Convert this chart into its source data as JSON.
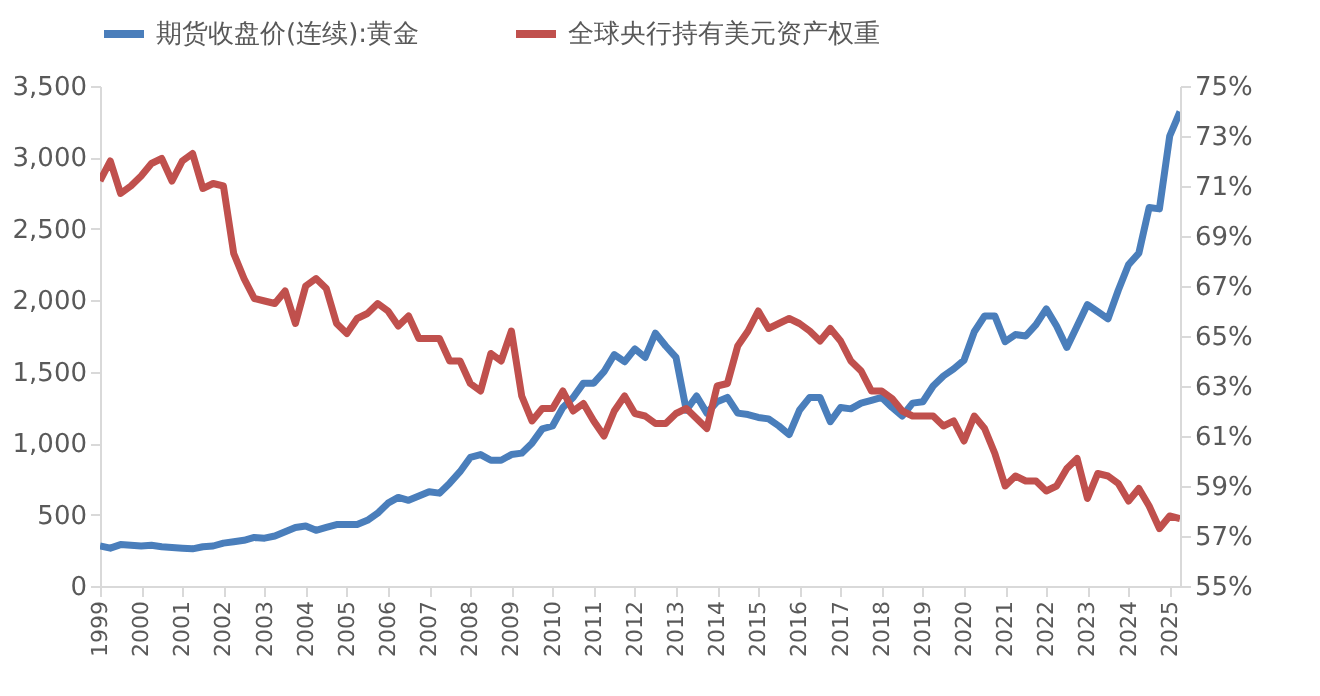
{
  "chart_data": {
    "type": "line",
    "x": [
      1999,
      1999.25,
      1999.5,
      1999.75,
      2000,
      2000.25,
      2000.5,
      2000.75,
      2001,
      2001.25,
      2001.5,
      2001.75,
      2002,
      2002.25,
      2002.5,
      2002.75,
      2003,
      2003.25,
      2003.5,
      2003.75,
      2004,
      2004.25,
      2004.5,
      2004.75,
      2005,
      2005.25,
      2005.5,
      2005.75,
      2006,
      2006.25,
      2006.5,
      2006.75,
      2007,
      2007.25,
      2007.5,
      2007.75,
      2008,
      2008.25,
      2008.5,
      2008.75,
      2009,
      2009.25,
      2009.5,
      2009.75,
      2010,
      2010.25,
      2010.5,
      2010.75,
      2011,
      2011.25,
      2011.5,
      2011.75,
      2012,
      2012.25,
      2012.5,
      2012.75,
      2013,
      2013.25,
      2013.5,
      2013.75,
      2014,
      2014.25,
      2014.5,
      2014.75,
      2015,
      2015.25,
      2015.5,
      2015.75,
      2016,
      2016.25,
      2016.5,
      2016.75,
      2017,
      2017.25,
      2017.5,
      2017.75,
      2018,
      2018.25,
      2018.5,
      2018.75,
      2019,
      2019.25,
      2019.5,
      2019.75,
      2020,
      2020.25,
      2020.5,
      2020.75,
      2021,
      2021.25,
      2021.5,
      2021.75,
      2022,
      2022.25,
      2022.5,
      2022.75,
      2023,
      2023.25,
      2023.5,
      2023.75,
      2024,
      2024.25,
      2024.5,
      2024.75,
      2025,
      2025.25
    ],
    "series": [
      {
        "name": "期货收盘价(连续):黄金",
        "color": "#4a7ebb",
        "values": [
          280,
          265,
          290,
          285,
          280,
          285,
          275,
          270,
          265,
          260,
          275,
          280,
          300,
          310,
          320,
          340,
          335,
          350,
          380,
          410,
          420,
          390,
          410,
          430,
          430,
          430,
          460,
          510,
          580,
          620,
          600,
          630,
          660,
          650,
          720,
          800,
          900,
          920,
          880,
          880,
          920,
          930,
          1000,
          1100,
          1120,
          1250,
          1320,
          1420,
          1420,
          1500,
          1620,
          1570,
          1660,
          1600,
          1770,
          1680,
          1600,
          1230,
          1330,
          1210,
          1290,
          1320,
          1210,
          1200,
          1180,
          1170,
          1120,
          1060,
          1230,
          1320,
          1320,
          1150,
          1250,
          1240,
          1280,
          1300,
          1320,
          1250,
          1190,
          1280,
          1290,
          1400,
          1470,
          1520,
          1580,
          1780,
          1890,
          1890,
          1710,
          1760,
          1750,
          1830,
          1940,
          1820,
          1670,
          1820,
          1970,
          1920,
          1870,
          2070,
          2250,
          2330,
          2650,
          2640,
          3150,
          3320
        ]
      },
      {
        "name": "全球央行持有美元资产权重",
        "color": "#c0504d",
        "axis": "y2",
        "values": [
          71.2,
          72.0,
          70.7,
          71.0,
          71.4,
          71.9,
          72.1,
          71.2,
          72.0,
          72.3,
          70.9,
          71.1,
          71.0,
          68.3,
          67.3,
          66.5,
          66.4,
          66.3,
          66.8,
          65.5,
          67.0,
          67.3,
          66.9,
          65.5,
          65.1,
          65.7,
          65.9,
          66.3,
          66.0,
          65.4,
          65.8,
          64.9,
          64.9,
          64.9,
          64.0,
          64.0,
          63.1,
          62.8,
          64.3,
          64.0,
          65.2,
          62.6,
          61.6,
          62.1,
          62.1,
          62.8,
          62.0,
          62.3,
          61.6,
          61.0,
          62.0,
          62.6,
          61.9,
          61.8,
          61.5,
          61.5,
          61.9,
          62.1,
          61.7,
          61.3,
          63.0,
          63.1,
          64.6,
          65.2,
          66.0,
          65.3,
          65.5,
          65.7,
          65.5,
          65.2,
          64.8,
          65.3,
          64.8,
          64.0,
          63.6,
          62.8,
          62.8,
          62.5,
          62.0,
          61.8,
          61.8,
          61.8,
          61.4,
          61.6,
          60.8,
          61.8,
          61.3,
          60.3,
          59.0,
          59.4,
          59.2,
          59.2,
          58.8,
          59.0,
          59.7,
          60.1,
          58.5,
          59.5,
          59.4,
          59.1,
          58.4,
          58.9,
          58.2,
          57.3,
          57.8,
          57.7
        ]
      }
    ],
    "xlim": [
      1999,
      2025.25
    ],
    "xticks": [
      1999,
      2000,
      2001,
      2002,
      2003,
      2004,
      2005,
      2006,
      2007,
      2008,
      2009,
      2010,
      2011,
      2012,
      2013,
      2014,
      2015,
      2016,
      2017,
      2018,
      2019,
      2020,
      2021,
      2022,
      2023,
      2024,
      2025
    ],
    "ylim": [
      0,
      3500
    ],
    "yticks": [
      {
        "value": 0,
        "label": "0"
      },
      {
        "value": 500,
        "label": "500"
      },
      {
        "value": 1000,
        "label": "1,000"
      },
      {
        "value": 1500,
        "label": "1,500"
      },
      {
        "value": 2000,
        "label": "2,000"
      },
      {
        "value": 2500,
        "label": "2,500"
      },
      {
        "value": 3000,
        "label": "3,000"
      },
      {
        "value": 3500,
        "label": "3,500"
      }
    ],
    "y2lim": [
      55,
      75
    ],
    "y2ticks": [
      {
        "value": 55,
        "label": "55%"
      },
      {
        "value": 57,
        "label": "57%"
      },
      {
        "value": 59,
        "label": "59%"
      },
      {
        "value": 61,
        "label": "61%"
      },
      {
        "value": 63,
        "label": "63%"
      },
      {
        "value": 65,
        "label": "65%"
      },
      {
        "value": 67,
        "label": "67%"
      },
      {
        "value": 69,
        "label": "69%"
      },
      {
        "value": 71,
        "label": "71%"
      },
      {
        "value": 73,
        "label": "73%"
      },
      {
        "value": 75,
        "label": "75%"
      }
    ],
    "legend": "top",
    "grid": false,
    "line_style": "solid",
    "marker": "none"
  }
}
